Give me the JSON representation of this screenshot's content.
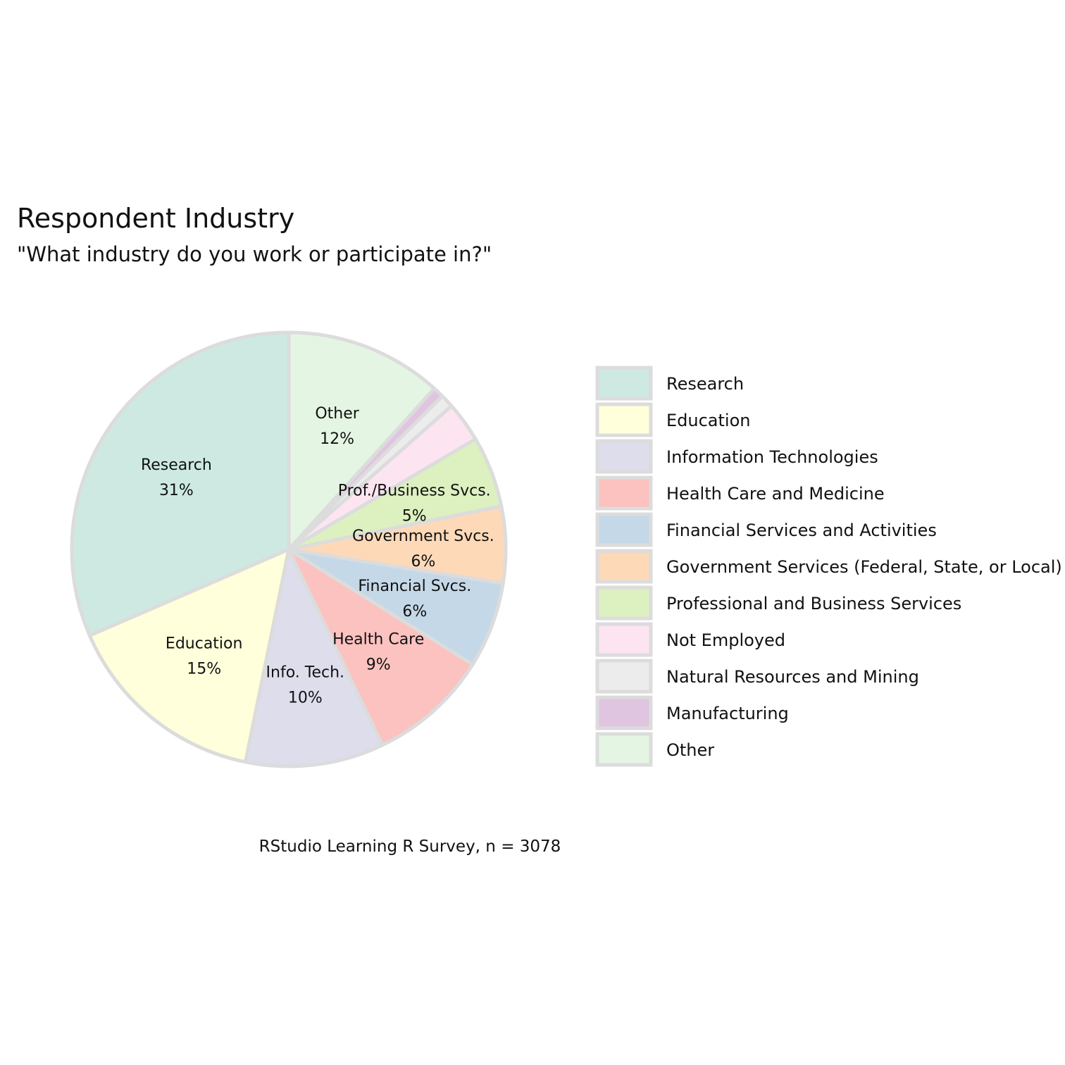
{
  "chart_data": {
    "type": "pie",
    "title": "Respondent Industry",
    "subtitle": "\"What industry do you work or participate in?\"",
    "caption": "RStudio Learning R Survey, n = 3078",
    "legend_position": "right",
    "slice_border_color": "#dcdcdc",
    "slices": [
      {
        "legend": "Research",
        "label": "Research",
        "pct_label": "31%",
        "value": 31.5,
        "color": "#cde9e2"
      },
      {
        "legend": "Education",
        "label": "Education",
        "pct_label": "15%",
        "value": 15.3,
        "color": "#ffffdb"
      },
      {
        "legend": "Information Technologies",
        "label": "Info. Tech.",
        "pct_label": "10%",
        "value": 10.3,
        "color": "#deddec"
      },
      {
        "legend": "Health Care and Medicine",
        "label": "Health Care",
        "pct_label": "9%",
        "value": 9.0,
        "color": "#fbc2c0"
      },
      {
        "legend": "Financial Services and Activities",
        "label": "Financial Svcs.",
        "pct_label": "6%",
        "value": 6.4,
        "color": "#c5d8e7"
      },
      {
        "legend": "Government Services (Federal, State, or Local)",
        "label": "Government Svcs.",
        "pct_label": "6%",
        "value": 5.7,
        "color": "#fdd9b8"
      },
      {
        "legend": "Professional and Business Services",
        "label": "Prof./Business Svcs.",
        "pct_label": "5%",
        "value": 5.3,
        "color": "#ddf0c0"
      },
      {
        "legend": "Not Employed",
        "label": "",
        "pct_label": "",
        "value": 3.0,
        "color": "#fce5f0"
      },
      {
        "legend": "Natural Resources and Mining",
        "label": "",
        "pct_label": "",
        "value": 1.0,
        "color": "#ececec"
      },
      {
        "legend": "Manufacturing",
        "label": "",
        "pct_label": "",
        "value": 0.8,
        "color": "#dfc5df"
      },
      {
        "legend": "Other",
        "label": "Other",
        "pct_label": "12%",
        "value": 11.7,
        "color": "#e5f5e3"
      }
    ]
  }
}
